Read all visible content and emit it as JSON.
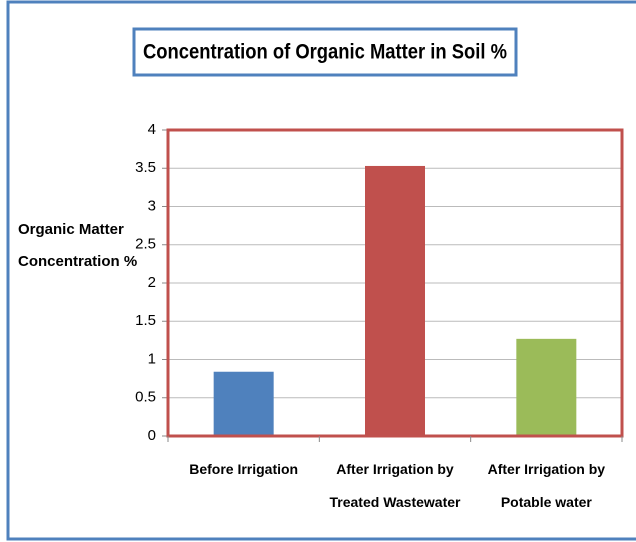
{
  "chart_data": {
    "type": "bar",
    "title": "Concentration of Organic Matter  in Soil %",
    "y_label": "Organic Matter Concentration %",
    "categories": [
      "Before Irrigation",
      "After Irrigation by Treated Wastewater",
      "After Irrigation by Potable water"
    ],
    "values": [
      0.84,
      3.53,
      1.27
    ],
    "colors": [
      "#4f81bd",
      "#c0504d",
      "#9bbb59"
    ],
    "ylim": [
      0,
      4
    ],
    "yticks": [
      0,
      0.5,
      1,
      1.5,
      2,
      2.5,
      3,
      3.5,
      4
    ],
    "grid": true
  }
}
